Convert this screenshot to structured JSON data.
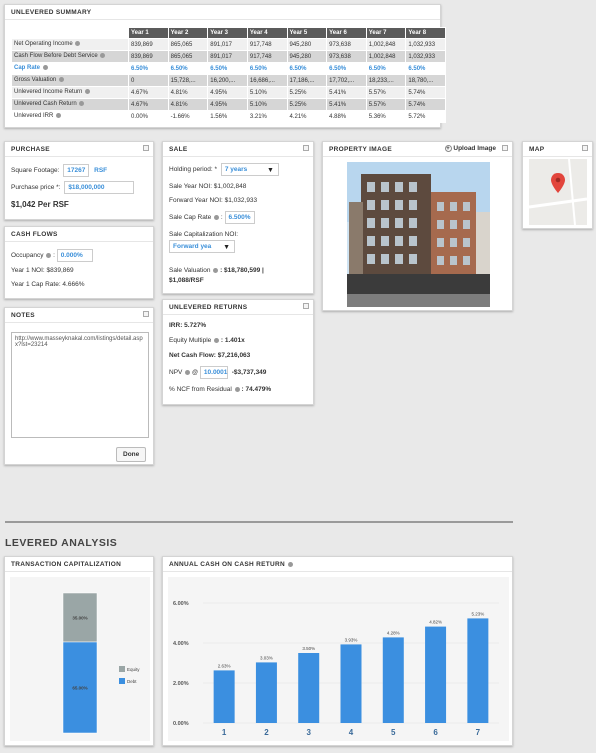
{
  "summary": {
    "title": "UNLEVERED SUMMARY",
    "columns": [
      "Year 1",
      "Year 2",
      "Year 3",
      "Year 4",
      "Year 5",
      "Year 6",
      "Year 7",
      "Year 8"
    ],
    "rows": [
      {
        "label": "Net Operating Income",
        "info": true,
        "values": [
          "839,869",
          "865,065",
          "891,017",
          "917,748",
          "945,280",
          "973,638",
          "1,002,848",
          "1,032,933"
        ],
        "style": "odd"
      },
      {
        "label": "Cash Flow Before Debt Service",
        "info": true,
        "values": [
          "839,869",
          "865,065",
          "891,017",
          "917,748",
          "945,280",
          "973,638",
          "1,002,848",
          "1,032,933"
        ],
        "style": "grey"
      },
      {
        "label": "Cap Rate",
        "info": true,
        "values": [
          "6.50%",
          "6.50%",
          "6.50%",
          "6.50%",
          "6.50%",
          "6.50%",
          "6.50%",
          "6.50%"
        ],
        "style": "capr"
      },
      {
        "label": "Gross Valuation",
        "info": true,
        "values": [
          "0",
          "15,728,...",
          "16,200,...",
          "16,686,...",
          "17,186,...",
          "17,702,...",
          "18,233,...",
          "18,780,..."
        ],
        "style": "grey"
      },
      {
        "label": "Unlevered Income Return",
        "info": true,
        "values": [
          "4.67%",
          "4.81%",
          "4.95%",
          "5.10%",
          "5.25%",
          "5.41%",
          "5.57%",
          "5.74%"
        ],
        "style": "odd"
      },
      {
        "label": "Unlevered Cash Return",
        "info": true,
        "values": [
          "4.67%",
          "4.81%",
          "4.95%",
          "5.10%",
          "5.25%",
          "5.41%",
          "5.57%",
          "5.74%"
        ],
        "style": "grey"
      },
      {
        "label": "Unlevered IRR",
        "info": true,
        "values": [
          "0.00%",
          "-1.66%",
          "1.56%",
          "3.21%",
          "4.21%",
          "4.88%",
          "5.36%",
          "5.72%"
        ],
        "style": "even"
      }
    ]
  },
  "purchase": {
    "title": "PURCHASE",
    "sqft_label": "Square Footage:",
    "sqft_value": "17267",
    "sqft_unit": "RSF",
    "price_label": "Purchase price *:",
    "price_value": "$18,000,000",
    "per_rsf": "$1,042  Per RSF"
  },
  "cashflows": {
    "title": "CASH FLOWS",
    "occupancy_label": "Occupancy",
    "occupancy_value": "0.000%",
    "year1_noi": "Year 1 NOI: $839,869",
    "year1_cap": "Year 1 Cap Rate: 4.666%"
  },
  "notes": {
    "title": "NOTES",
    "text": "http://www.masseyknakal.com/listings/detail.aspx?lst=23214",
    "done_label": "Done"
  },
  "sale": {
    "title": "SALE",
    "holding_label": "Holding period: *",
    "holding_value": "7 years",
    "sale_year_noi": "Sale Year NOI: $1,002,848",
    "forward_noi": "Forward Year NOI: $1,032,933",
    "cap_label": "Sale Cap Rate",
    "cap_value": "6.500%",
    "cap_noi_label": "Sale Capitalization NOI:",
    "cap_noi_value": "Forward yea",
    "valuation_line1": "Sale Valuation",
    "valuation_value": ": $18,780,599 |",
    "valuation_line2": "$1,088/RSF"
  },
  "unlev": {
    "title": "UNLEVERED RETURNS",
    "irr": "IRR: 5.727%",
    "equity_label": "Equity Multiple",
    "equity_value": ": 1.401x",
    "net_cf": "Net Cash Flow: $7,216,063",
    "npv_label": "NPV",
    "npv_input": "10.0001",
    "npv_value": "-$3,737,349",
    "ncf_label": "% NCF from Residual",
    "ncf_value": ": 74.479%"
  },
  "property": {
    "title": "PROPERTY IMAGE",
    "upload_label": "Upload Image"
  },
  "map": {
    "title": "MAP"
  },
  "levered": {
    "section_title": "LEVERED ANALYSIS",
    "tc_title": "TRANSACTION CAPITALIZATION",
    "acr_title": "ANNUAL CASH ON CASH RETURN"
  },
  "chart_data": [
    {
      "type": "bar",
      "title": "TRANSACTION CAPITALIZATION",
      "stacked": true,
      "categories": [
        ""
      ],
      "series": [
        {
          "name": "Equity",
          "values": [
            35.0
          ],
          "color": "#9aa6a6"
        },
        {
          "name": "Debt",
          "values": [
            65.0
          ],
          "color": "#3b8fe0"
        }
      ],
      "data_labels": [
        "35.00%",
        "65.00%"
      ],
      "legend": "right"
    },
    {
      "type": "bar",
      "title": "ANNUAL CASH ON CASH RETURN",
      "categories": [
        "1",
        "2",
        "3",
        "4",
        "5",
        "6",
        "7"
      ],
      "values": [
        2.63,
        3.03,
        3.5,
        3.93,
        4.28,
        4.82,
        5.23
      ],
      "data_labels": [
        "2.63%",
        "3.03%",
        "3.50%",
        "3.93%",
        "4.28%",
        "4.82%",
        "5.23%"
      ],
      "ylim": [
        0,
        6
      ],
      "yticks": [
        "0.00%",
        "2.00%",
        "4.00%",
        "6.00%"
      ],
      "color": "#3b8fe0"
    }
  ]
}
